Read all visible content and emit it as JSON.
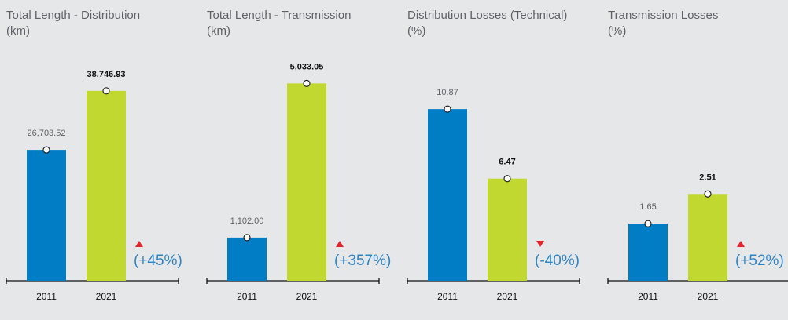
{
  "colors": {
    "base": "#007dc5",
    "current": "#c1d830",
    "up": "#e8232a",
    "down": "#e8232a",
    "change_text": "#2f86c7"
  },
  "chart_data": [
    {
      "type": "bar",
      "title": "Total Length - Distribution",
      "unit": "(km)",
      "categories": [
        "2011",
        "2021"
      ],
      "values": [
        26703.52,
        38746.93
      ],
      "value_labels": [
        "26,703.52",
        "38,746.93"
      ],
      "change": "(+45%)",
      "direction": "up",
      "ylim": [
        0,
        48000
      ]
    },
    {
      "type": "bar",
      "title": "Total Length - Transmission",
      "unit": "(km)",
      "categories": [
        "2011",
        "2021"
      ],
      "values": [
        1102.0,
        5033.05
      ],
      "value_labels": [
        "1,102.00",
        "5,033.05"
      ],
      "change": "(+357%)",
      "direction": "up",
      "ylim": [
        0,
        6000
      ]
    },
    {
      "type": "bar",
      "title": "Distribution Losses (Technical)",
      "unit": "(%)",
      "categories": [
        "2011",
        "2021"
      ],
      "values": [
        10.87,
        6.47
      ],
      "value_labels": [
        "10.87",
        "6.47"
      ],
      "change": "(-40%)",
      "direction": "down",
      "ylim": [
        0,
        14.9
      ]
    },
    {
      "type": "bar",
      "title": "Transmission Losses",
      "unit": "(%)",
      "categories": [
        "2011",
        "2021"
      ],
      "values": [
        1.65,
        2.51
      ],
      "value_labels": [
        "1.65",
        "2.51"
      ],
      "change": "(+52%)",
      "direction": "up",
      "ylim": [
        0,
        6.8
      ]
    }
  ]
}
